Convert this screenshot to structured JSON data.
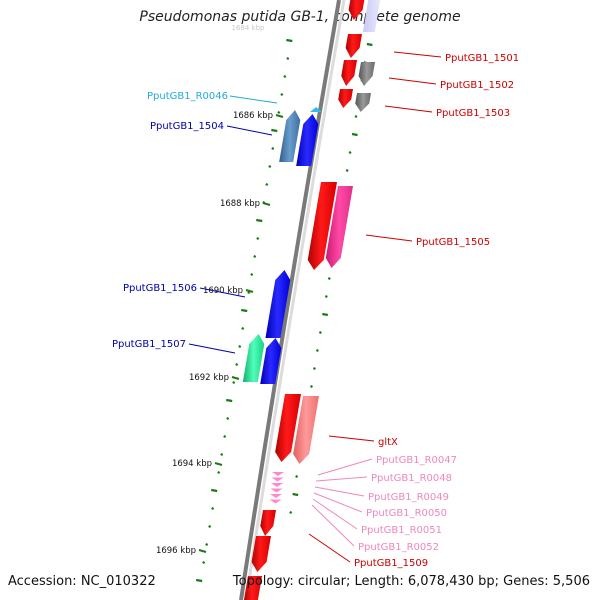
{
  "title": "Pseudomonas putida GB-1, complete genome",
  "footer": {
    "accession": "Accession: NC_010322",
    "topology": "Topology: circular; Length: 6,078,430 bp; Genes: 5,506"
  },
  "colors": {
    "forward_gene": "#ff0000",
    "forward_pseudo": "#ff8080",
    "forward_gray": "#7a7a7a",
    "forward_magenta": "#ff3399",
    "trna": "#ff88cc",
    "reverse_gene": "#0000ff",
    "reverse_steel": "#4682b4",
    "reverse_green": "#22ee99",
    "label_red": "#cc0000",
    "label_blue": "#0000aa",
    "label_cyan": "#22aadd",
    "label_pink": "#ee88bb",
    "axis_ticks": "#1a7a1a",
    "backbone": "#888888"
  },
  "kbp_ticks": [
    {
      "label": "1686 kbp"
    },
    {
      "label": "1688 kbp"
    },
    {
      "label": "1690 kbp"
    },
    {
      "label": "1692 kbp"
    },
    {
      "label": "1694 kbp"
    },
    {
      "label": "1696 kbp"
    }
  ],
  "faint_top_tick": "1684 kbp",
  "features": [
    {
      "name": "PputGB1_1501",
      "strand": "+",
      "color": "red"
    },
    {
      "name": "PputGB1_1502",
      "strand": "+",
      "color": "gray"
    },
    {
      "name": "PputGB1_1503",
      "strand": "+",
      "color": "gray"
    },
    {
      "name": "PputGB1_R0046",
      "strand": "-",
      "color": "cyan"
    },
    {
      "name": "PputGB1_1504",
      "strand": "-",
      "color": "blue"
    },
    {
      "name": "PputGB1_1505",
      "strand": "+",
      "color": "red"
    },
    {
      "name": "PputGB1_1506",
      "strand": "-",
      "color": "blue"
    },
    {
      "name": "PputGB1_1507",
      "strand": "-",
      "color": "blue"
    },
    {
      "name": "gltX",
      "strand": "+",
      "color": "red"
    },
    {
      "name": "PputGB1_R0047",
      "strand": "+",
      "color": "pink"
    },
    {
      "name": "PputGB1_R0048",
      "strand": "+",
      "color": "pink"
    },
    {
      "name": "PputGB1_R0049",
      "strand": "+",
      "color": "pink"
    },
    {
      "name": "PputGB1_R0050",
      "strand": "+",
      "color": "pink"
    },
    {
      "name": "PputGB1_R0051",
      "strand": "+",
      "color": "pink"
    },
    {
      "name": "PputGB1_R0052",
      "strand": "+",
      "color": "pink"
    },
    {
      "name": "PputGB1_1509",
      "strand": "+",
      "color": "red"
    }
  ]
}
